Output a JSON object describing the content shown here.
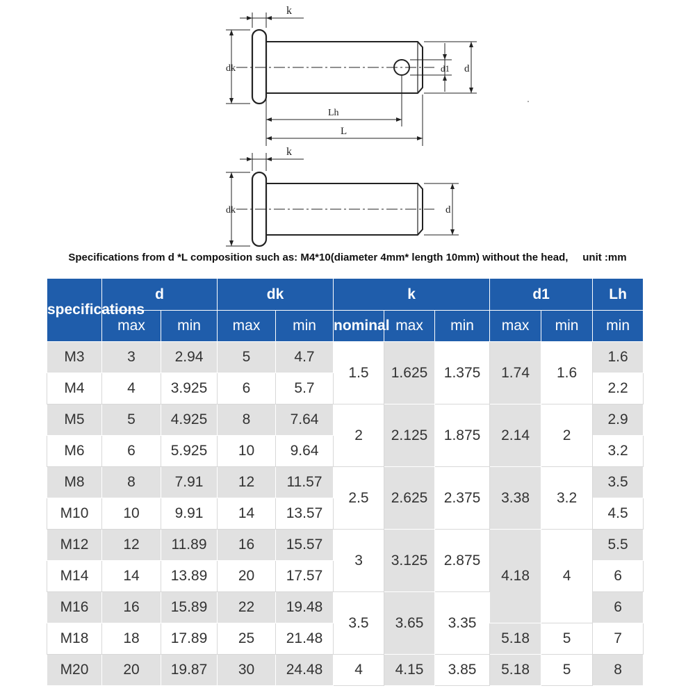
{
  "drawing": {
    "labels": {
      "k": "k",
      "dk": "dk",
      "d1": "d1",
      "d": "d",
      "lh": "Lh",
      "l": "L"
    }
  },
  "caption": "Specifications from d *L composition such as: M4*10(diameter 4mm* length 10mm) without the head,     unit :mm",
  "table": {
    "header1": {
      "specifications": "specifications",
      "d": "d",
      "dk": "dk",
      "k": "k",
      "d1": "d1",
      "lh": "Lh"
    },
    "header2": [
      "max",
      "min",
      "max",
      "min",
      "nominal",
      "max",
      "min",
      "max",
      "min",
      "min"
    ],
    "rows": [
      {
        "spec": "M3",
        "d_max": "3",
        "d_min": "2.94",
        "dk_max": "5",
        "dk_min": "4.7",
        "lh_min": "1.6"
      },
      {
        "spec": "M4",
        "d_max": "4",
        "d_min": "3.925",
        "dk_max": "6",
        "dk_min": "5.7",
        "lh_min": "2.2"
      },
      {
        "spec": "M5",
        "d_max": "5",
        "d_min": "4.925",
        "dk_max": "8",
        "dk_min": "7.64",
        "lh_min": "2.9"
      },
      {
        "spec": "M6",
        "d_max": "6",
        "d_min": "5.925",
        "dk_max": "10",
        "dk_min": "9.64",
        "lh_min": "3.2"
      },
      {
        "spec": "M8",
        "d_max": "8",
        "d_min": "7.91",
        "dk_max": "12",
        "dk_min": "11.57",
        "lh_min": "3.5"
      },
      {
        "spec": "M10",
        "d_max": "10",
        "d_min": "9.91",
        "dk_max": "14",
        "dk_min": "13.57",
        "lh_min": "4.5"
      },
      {
        "spec": "M12",
        "d_max": "12",
        "d_min": "11.89",
        "dk_max": "16",
        "dk_min": "15.57",
        "lh_min": "5.5"
      },
      {
        "spec": "M14",
        "d_max": "14",
        "d_min": "13.89",
        "dk_max": "20",
        "dk_min": "17.57",
        "lh_min": "6"
      },
      {
        "spec": "M16",
        "d_max": "16",
        "d_min": "15.89",
        "dk_max": "22",
        "dk_min": "19.48",
        "lh_min": "6"
      },
      {
        "spec": "M18",
        "d_max": "18",
        "d_min": "17.89",
        "dk_max": "25",
        "dk_min": "21.48",
        "lh_min": "7"
      },
      {
        "spec": "M20",
        "d_max": "20",
        "d_min": "19.87",
        "dk_max": "30",
        "dk_min": "24.48",
        "lh_min": "8"
      }
    ],
    "k_groups": [
      {
        "nominal": "1.5",
        "max": "1.625",
        "min": "1.375"
      },
      {
        "nominal": "2",
        "max": "2.125",
        "min": "1.875"
      },
      {
        "nominal": "2.5",
        "max": "2.625",
        "min": "2.375"
      },
      {
        "nominal": "3",
        "max": "3.125",
        "min": "2.875"
      },
      {
        "nominal": "3.5",
        "max": "3.65",
        "min": "3.35"
      },
      {
        "nominal": "4",
        "max": "4.15",
        "min": "3.85"
      }
    ],
    "d1_groups": [
      {
        "max": "1.74",
        "min": "1.6"
      },
      {
        "max": "2.14",
        "min": "2"
      },
      {
        "max": "3.38",
        "min": "3.2"
      },
      {
        "max": "4.18",
        "min": "4"
      },
      {
        "max": "5.18",
        "min": "5"
      },
      {
        "max": "5.18",
        "min": "5"
      }
    ]
  }
}
